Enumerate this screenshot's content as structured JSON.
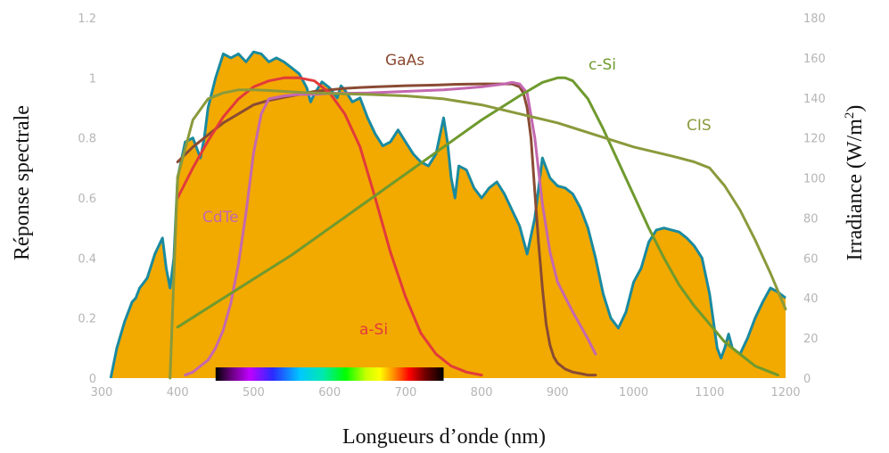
{
  "chart_data": {
    "type": "line",
    "title": "",
    "xlabel": "Longueurs d’onde (nm)",
    "ylabel_left": "Réponse spectrale",
    "ylabel_right_prefix": "Irradiance (W/m",
    "ylabel_right_sup": "2",
    "ylabel_right_suffix": ")",
    "xlim": [
      300,
      1200
    ],
    "ylim_left": [
      0,
      1.2
    ],
    "ylim_right": [
      0,
      180
    ],
    "x_ticks": [
      300,
      400,
      500,
      600,
      700,
      800,
      900,
      1000,
      1100,
      1200
    ],
    "y_left_ticks": [
      0,
      0.2,
      0.4,
      0.6,
      0.8,
      1,
      1.2
    ],
    "y_right_ticks": [
      0,
      20,
      40,
      60,
      80,
      100,
      120,
      140,
      160,
      180
    ],
    "y_left_tick_labels": [
      "0",
      "0.2",
      "0.4",
      "0.6",
      "0.8",
      "1",
      "1.2"
    ],
    "grid": false,
    "visible_spectrum_band": [
      450,
      750
    ],
    "irradiance": {
      "axis": "right",
      "fill_color": "#f2a900",
      "line_color": "#1a8aa0",
      "x": [
        312,
        320,
        330,
        340,
        345,
        350,
        360,
        370,
        380,
        385,
        390,
        395,
        400,
        410,
        420,
        430,
        435,
        440,
        450,
        460,
        470,
        480,
        490,
        500,
        510,
        520,
        530,
        540,
        550,
        560,
        570,
        575,
        580,
        590,
        600,
        610,
        615,
        620,
        630,
        640,
        650,
        660,
        670,
        680,
        690,
        700,
        710,
        720,
        730,
        740,
        750,
        755,
        760,
        765,
        770,
        780,
        790,
        800,
        810,
        820,
        830,
        840,
        850,
        860,
        870,
        880,
        890,
        900,
        910,
        920,
        930,
        940,
        950,
        960,
        970,
        980,
        990,
        1000,
        1010,
        1020,
        1030,
        1040,
        1050,
        1060,
        1070,
        1080,
        1090,
        1100,
        1110,
        1115,
        1120,
        1125,
        1130,
        1140,
        1150,
        1160,
        1170,
        1180,
        1190,
        1200
      ],
      "y": [
        0,
        15,
        28,
        38,
        40,
        45,
        50,
        62,
        70,
        55,
        45,
        60,
        100,
        118,
        120,
        110,
        120,
        135,
        150,
        162,
        160,
        162,
        158,
        163,
        162,
        158,
        160,
        158,
        155,
        152,
        145,
        138,
        142,
        148,
        145,
        140,
        146,
        144,
        138,
        140,
        130,
        122,
        116,
        118,
        124,
        118,
        112,
        108,
        106,
        112,
        130,
        118,
        100,
        90,
        106,
        104,
        95,
        90,
        95,
        98,
        92,
        84,
        76,
        62,
        80,
        110,
        100,
        96,
        95,
        92,
        85,
        75,
        60,
        42,
        30,
        25,
        33,
        48,
        55,
        68,
        74,
        75,
        74,
        73,
        70,
        66,
        60,
        42,
        15,
        10,
        15,
        22,
        15,
        12,
        20,
        30,
        38,
        45,
        43,
        40
      ]
    },
    "series": [
      {
        "name": "GaAs",
        "color": "#8a4b33",
        "x": [
          400,
          420,
          440,
          460,
          480,
          500,
          520,
          540,
          560,
          580,
          600,
          620,
          640,
          660,
          680,
          700,
          720,
          740,
          760,
          780,
          800,
          820,
          840,
          850,
          855,
          860,
          865,
          870,
          875,
          880,
          885,
          890,
          895,
          900,
          910,
          920,
          930,
          940,
          950
        ],
        "y": [
          0.72,
          0.77,
          0.81,
          0.85,
          0.88,
          0.91,
          0.925,
          0.935,
          0.945,
          0.955,
          0.96,
          0.965,
          0.968,
          0.97,
          0.972,
          0.974,
          0.975,
          0.976,
          0.978,
          0.979,
          0.98,
          0.98,
          0.98,
          0.97,
          0.95,
          0.9,
          0.8,
          0.62,
          0.45,
          0.3,
          0.18,
          0.11,
          0.07,
          0.05,
          0.03,
          0.02,
          0.015,
          0.01,
          0.01
        ]
      },
      {
        "name": "a-Si",
        "color": "#e23b3b",
        "x": [
          400,
          420,
          440,
          460,
          480,
          500,
          520,
          540,
          560,
          580,
          600,
          620,
          640,
          660,
          680,
          700,
          720,
          740,
          760,
          780,
          800
        ],
        "y": [
          0.6,
          0.7,
          0.79,
          0.87,
          0.93,
          0.97,
          0.99,
          1.0,
          1.0,
          0.99,
          0.95,
          0.88,
          0.77,
          0.6,
          0.42,
          0.27,
          0.15,
          0.08,
          0.04,
          0.02,
          0.01
        ]
      },
      {
        "name": "CdTe",
        "color": "#c468b0",
        "x": [
          410,
          420,
          430,
          440,
          450,
          460,
          470,
          480,
          490,
          500,
          510,
          520,
          540,
          560,
          580,
          600,
          650,
          700,
          750,
          800,
          830,
          840,
          850,
          860,
          870,
          880,
          890,
          900,
          920,
          940,
          950
        ],
        "y": [
          0.01,
          0.02,
          0.04,
          0.06,
          0.1,
          0.16,
          0.25,
          0.38,
          0.55,
          0.75,
          0.88,
          0.93,
          0.94,
          0.945,
          0.945,
          0.948,
          0.95,
          0.955,
          0.96,
          0.97,
          0.98,
          0.985,
          0.98,
          0.95,
          0.8,
          0.58,
          0.42,
          0.32,
          0.22,
          0.13,
          0.08
        ]
      },
      {
        "name": "c-Si",
        "color": "#6f9a2e",
        "x": [
          400,
          450,
          500,
          550,
          600,
          650,
          700,
          750,
          800,
          850,
          880,
          900,
          910,
          920,
          940,
          960,
          980,
          1000,
          1020,
          1040,
          1060,
          1080,
          1100,
          1120,
          1140,
          1160,
          1180,
          1190
        ],
        "y": [
          0.17,
          0.25,
          0.33,
          0.41,
          0.5,
          0.59,
          0.68,
          0.77,
          0.86,
          0.94,
          0.985,
          1.0,
          1.0,
          0.99,
          0.93,
          0.83,
          0.72,
          0.61,
          0.5,
          0.4,
          0.31,
          0.24,
          0.18,
          0.12,
          0.08,
          0.04,
          0.02,
          0.01
        ]
      },
      {
        "name": "CIS",
        "color": "#8a9a3c",
        "x": [
          390,
          400,
          420,
          440,
          460,
          480,
          500,
          520,
          540,
          560,
          580,
          600,
          650,
          700,
          750,
          800,
          850,
          900,
          950,
          1000,
          1050,
          1080,
          1100,
          1120,
          1140,
          1160,
          1180,
          1190,
          1200
        ],
        "y": [
          0.0,
          0.67,
          0.86,
          0.93,
          0.95,
          0.96,
          0.96,
          0.958,
          0.955,
          0.952,
          0.95,
          0.948,
          0.945,
          0.94,
          0.93,
          0.91,
          0.88,
          0.85,
          0.81,
          0.77,
          0.74,
          0.72,
          0.7,
          0.64,
          0.56,
          0.46,
          0.35,
          0.29,
          0.23
        ]
      }
    ]
  }
}
